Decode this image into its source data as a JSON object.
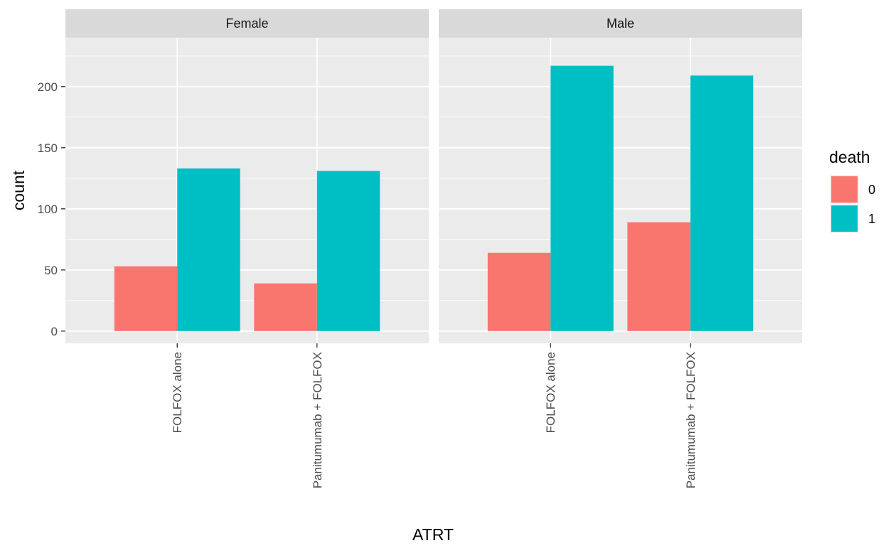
{
  "chart_data": {
    "type": "bar",
    "xlabel": "ATRT",
    "ylabel": "count",
    "ylim": [
      -10,
      240
    ],
    "yticks": [
      0,
      50,
      100,
      150,
      200
    ],
    "grid": true,
    "legend": {
      "title": "death",
      "position": "right",
      "entries": [
        {
          "label": "0",
          "color": "#F8766D"
        },
        {
          "label": "1",
          "color": "#00BFC4"
        }
      ]
    },
    "categories": [
      "FOLFOX alone",
      "Panitumumab + FOLFOX"
    ],
    "facets": [
      {
        "label": "Female",
        "series": [
          {
            "name": "0",
            "values": [
              53,
              39
            ]
          },
          {
            "name": "1",
            "values": [
              133,
              131
            ]
          }
        ]
      },
      {
        "label": "Male",
        "series": [
          {
            "name": "0",
            "values": [
              64,
              89
            ]
          },
          {
            "name": "1",
            "values": [
              217,
              209
            ]
          }
        ]
      }
    ]
  }
}
